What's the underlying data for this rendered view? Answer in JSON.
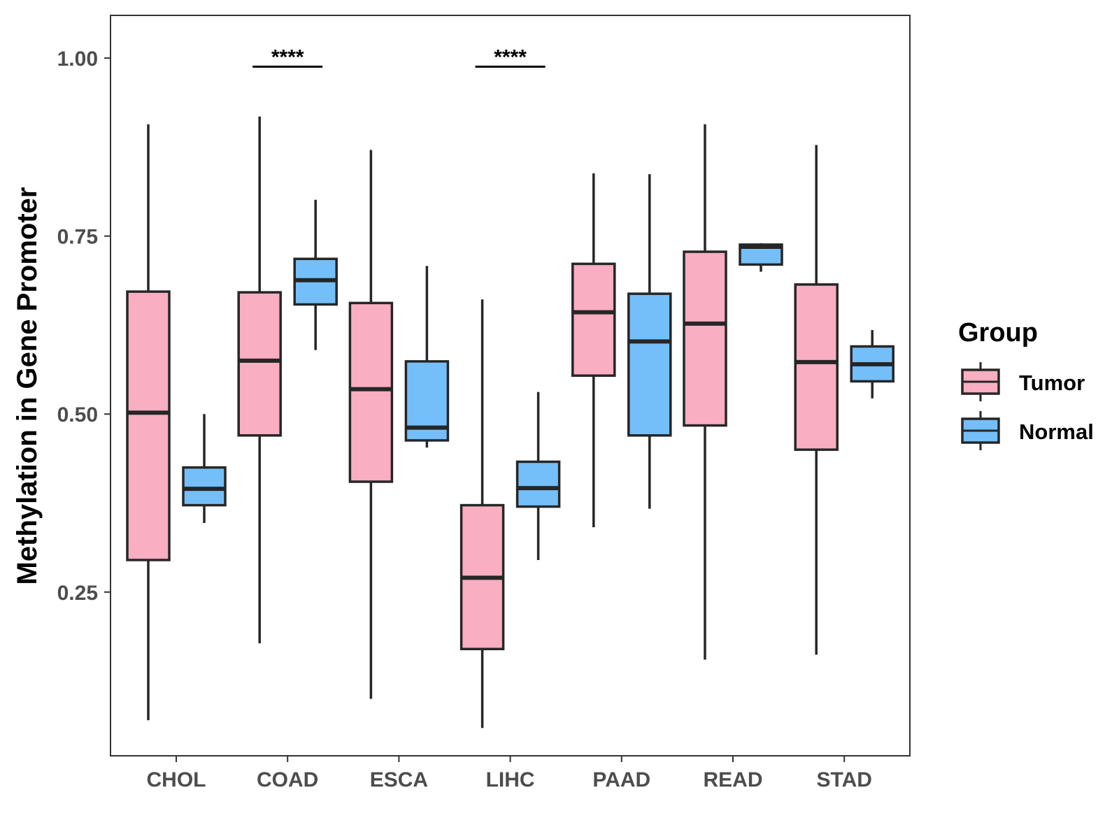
{
  "chart_data": {
    "type": "boxplot",
    "ylabel": "Methylation in Gene Promoter",
    "xlabel": "",
    "ylim": [
      0.02,
      1.06
    ],
    "yticks": [
      {
        "value": 0.25,
        "label": "0.25"
      },
      {
        "value": 0.5,
        "label": "0.50"
      },
      {
        "value": 0.75,
        "label": "0.75"
      },
      {
        "value": 1.0,
        "label": "1.00"
      }
    ],
    "grid": false,
    "categories": [
      "CHOL",
      "COAD",
      "ESCA",
      "LIHC",
      "PAAD",
      "READ",
      "STAD"
    ],
    "legend": {
      "title": "Group",
      "position": "right"
    },
    "series": [
      {
        "name": "Tumor",
        "color": "#F9AEC1",
        "boxes": [
          {
            "category": "CHOL",
            "min": 0.07,
            "q1": 0.295,
            "median": 0.502,
            "q3": 0.672,
            "max": 0.907
          },
          {
            "category": "COAD",
            "min": 0.178,
            "q1": 0.47,
            "median": 0.575,
            "q3": 0.671,
            "max": 0.918
          },
          {
            "category": "ESCA",
            "min": 0.1,
            "q1": 0.405,
            "median": 0.535,
            "q3": 0.656,
            "max": 0.871
          },
          {
            "category": "LIHC",
            "min": 0.059,
            "q1": 0.17,
            "median": 0.27,
            "q3": 0.372,
            "max": 0.661
          },
          {
            "category": "PAAD",
            "min": 0.341,
            "q1": 0.554,
            "median": 0.643,
            "q3": 0.711,
            "max": 0.838
          },
          {
            "category": "READ",
            "min": 0.155,
            "q1": 0.484,
            "median": 0.627,
            "q3": 0.728,
            "max": 0.907
          },
          {
            "category": "STAD",
            "min": 0.162,
            "q1": 0.45,
            "median": 0.573,
            "q3": 0.682,
            "max": 0.878
          }
        ]
      },
      {
        "name": "Normal",
        "color": "#74BFF9",
        "boxes": [
          {
            "category": "CHOL",
            "min": 0.347,
            "q1": 0.372,
            "median": 0.395,
            "q3": 0.425,
            "max": 0.5
          },
          {
            "category": "COAD",
            "min": 0.59,
            "q1": 0.654,
            "median": 0.688,
            "q3": 0.718,
            "max": 0.801
          },
          {
            "category": "ESCA",
            "min": 0.453,
            "q1": 0.463,
            "median": 0.481,
            "q3": 0.574,
            "max": 0.708
          },
          {
            "category": "LIHC",
            "min": 0.295,
            "q1": 0.37,
            "median": 0.396,
            "q3": 0.433,
            "max": 0.531
          },
          {
            "category": "PAAD",
            "min": 0.367,
            "q1": 0.47,
            "median": 0.602,
            "q3": 0.669,
            "max": 0.837
          },
          {
            "category": "READ",
            "min": 0.7,
            "q1": 0.71,
            "median": 0.735,
            "q3": 0.738,
            "max": 0.74
          },
          {
            "category": "STAD",
            "min": 0.522,
            "q1": 0.546,
            "median": 0.57,
            "q3": 0.595,
            "max": 0.618
          }
        ]
      }
    ],
    "significance": [
      {
        "category": "COAD",
        "label": "****",
        "y": 0.988
      },
      {
        "category": "LIHC",
        "label": "****",
        "y": 0.988
      }
    ]
  }
}
